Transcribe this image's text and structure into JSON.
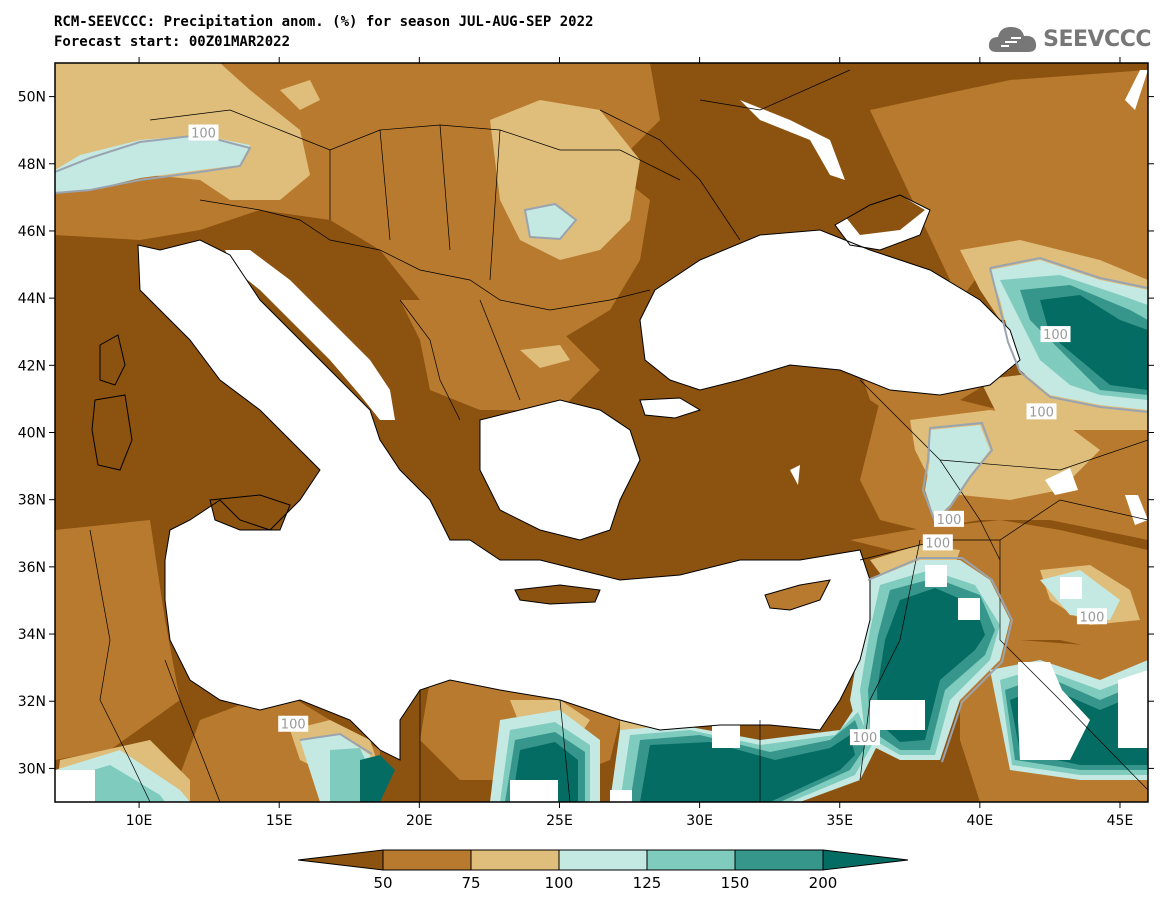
{
  "title_line1": "RCM-SEEVCCC: Precipitation anom. (%) for season JUL-AUG-SEP 2022",
  "title_line2": "Forecast start: 00Z01MAR2022",
  "logo": {
    "text": "SEEVCCC",
    "icon": "cloud-icon"
  },
  "map": {
    "lon_range": [
      7,
      46
    ],
    "lat_range": [
      29,
      51
    ],
    "lon_ticks": [
      "10E",
      "15E",
      "20E",
      "25E",
      "30E",
      "35E",
      "40E",
      "45E"
    ],
    "lat_ticks": [
      "50N",
      "48N",
      "46N",
      "44N",
      "42N",
      "40N",
      "38N",
      "36N",
      "34N",
      "32N",
      "30N"
    ],
    "contour_labels": [
      {
        "text": "100",
        "lon": 12.3,
        "lat": 48.9
      },
      {
        "text": "100",
        "lon": 42.7,
        "lat": 42.9
      },
      {
        "text": "100",
        "lon": 42.2,
        "lat": 40.6
      },
      {
        "text": "100",
        "lon": 38.9,
        "lat": 37.4
      },
      {
        "text": "100",
        "lon": 38.5,
        "lat": 36.7
      },
      {
        "text": "100",
        "lon": 44.0,
        "lat": 34.5
      },
      {
        "text": "100",
        "lon": 35.9,
        "lat": 30.9
      },
      {
        "text": "100",
        "lon": 15.5,
        "lat": 31.3
      }
    ]
  },
  "colorbar": {
    "labels": [
      "50",
      "75",
      "100",
      "125",
      "150",
      "200"
    ],
    "colors": [
      "#8c520f",
      "#b87a2e",
      "#dfbd7a",
      "#c4e9e3",
      "#7fcbbd",
      "#37968c",
      "#046c62"
    ]
  }
}
